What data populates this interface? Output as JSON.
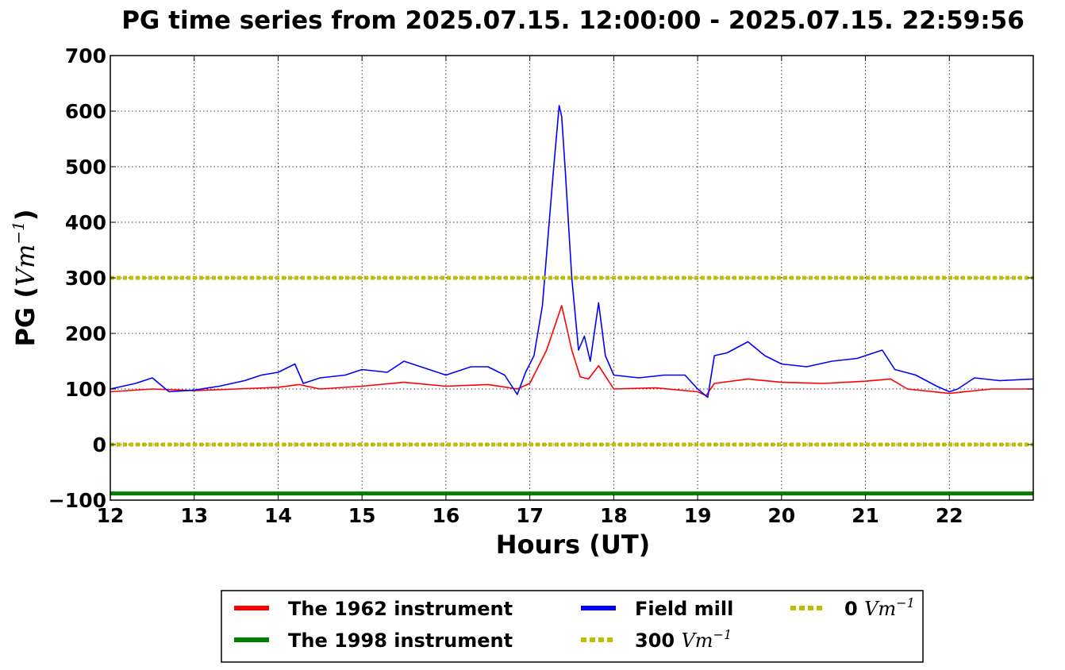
{
  "chart_data": {
    "type": "line",
    "title": "PG time series from 2025.07.15. 12:00:00 - 2025.07.15. 22:59:56",
    "xlabel": "Hours (UT)",
    "ylabel": {
      "prefix": "PG (",
      "unit_base": "Vm",
      "unit_exp": "−1",
      "suffix": ")"
    },
    "xlim": [
      12,
      23
    ],
    "ylim": [
      -100,
      700
    ],
    "xticks": [
      12,
      13,
      14,
      15,
      16,
      17,
      18,
      19,
      20,
      21,
      22
    ],
    "xtick_labels": [
      "12",
      "13",
      "14",
      "15",
      "16",
      "17",
      "18",
      "19",
      "20",
      "21",
      "22"
    ],
    "yticks": [
      -100,
      0,
      100,
      200,
      300,
      400,
      500,
      600,
      700
    ],
    "ytick_labels": [
      "−100",
      "0",
      "100",
      "200",
      "300",
      "400",
      "500",
      "600",
      "700"
    ],
    "grid": true,
    "legend_position": "bottom-center",
    "series": [
      {
        "name": "The 1962 instrument",
        "color": "#ff0000",
        "style": "solid",
        "x": [
          12.0,
          12.5,
          13.0,
          13.5,
          14.0,
          14.25,
          14.5,
          15.0,
          15.5,
          16.0,
          16.5,
          16.85,
          17.0,
          17.2,
          17.38,
          17.5,
          17.6,
          17.7,
          17.82,
          18.0,
          18.5,
          19.0,
          19.1,
          19.2,
          19.6,
          20.0,
          20.5,
          21.0,
          21.3,
          21.5,
          22.0,
          22.5,
          23.0
        ],
        "y": [
          95,
          100,
          97,
          100,
          103,
          108,
          100,
          105,
          112,
          105,
          108,
          100,
          110,
          170,
          250,
          170,
          122,
          118,
          142,
          100,
          102,
          95,
          88,
          110,
          118,
          112,
          110,
          114,
          118,
          100,
          92,
          100,
          100
        ]
      },
      {
        "name": "The 1998 instrument",
        "color": "#008000",
        "style": "solid",
        "x": [
          12.0,
          23.0
        ],
        "y": [
          -88,
          -88
        ]
      },
      {
        "name": "Field mill",
        "color": "#0000ff",
        "style": "solid",
        "x": [
          12.0,
          12.3,
          12.5,
          12.7,
          13.0,
          13.3,
          13.6,
          13.8,
          14.0,
          14.2,
          14.3,
          14.5,
          14.8,
          15.0,
          15.3,
          15.5,
          15.7,
          16.0,
          16.3,
          16.5,
          16.7,
          16.85,
          16.95,
          17.05,
          17.15,
          17.22,
          17.28,
          17.35,
          17.38,
          17.42,
          17.5,
          17.58,
          17.65,
          17.72,
          17.82,
          17.9,
          18.0,
          18.3,
          18.6,
          18.85,
          19.0,
          19.12,
          19.2,
          19.35,
          19.6,
          19.8,
          20.0,
          20.3,
          20.6,
          20.9,
          21.2,
          21.35,
          21.6,
          21.85,
          22.0,
          22.1,
          22.3,
          22.6,
          23.0
        ],
        "y": [
          100,
          110,
          120,
          95,
          98,
          105,
          115,
          125,
          130,
          145,
          110,
          120,
          125,
          135,
          130,
          150,
          140,
          125,
          140,
          140,
          125,
          90,
          130,
          160,
          250,
          380,
          490,
          610,
          590,
          500,
          300,
          170,
          195,
          150,
          255,
          160,
          125,
          120,
          125,
          125,
          100,
          85,
          160,
          165,
          185,
          160,
          145,
          140,
          150,
          155,
          170,
          135,
          125,
          105,
          95,
          100,
          120,
          115,
          118
        ]
      },
      {
        "name": "300 Vm⁻¹",
        "color": "#bfbf00",
        "style": "dotted",
        "x": [
          12.0,
          23.0
        ],
        "y": [
          300,
          300
        ]
      },
      {
        "name": "0 Vm⁻¹",
        "color": "#bfbf00",
        "style": "dotted",
        "x": [
          12.0,
          23.0
        ],
        "y": [
          0,
          0
        ]
      }
    ],
    "legend": [
      {
        "label": "The 1962 instrument",
        "color": "#ff0000",
        "style": "solid"
      },
      {
        "label": "The 1998 instrument",
        "color": "#008000",
        "style": "solid"
      },
      {
        "label": "Field mill",
        "color": "#0000ff",
        "style": "solid"
      },
      {
        "label_prefix": "300",
        "unit_base": "Vm",
        "unit_exp": "−1",
        "color": "#bfbf00",
        "style": "dotted"
      },
      {
        "label_prefix": "0",
        "unit_base": "Vm",
        "unit_exp": "−1",
        "color": "#bfbf00",
        "style": "dotted"
      }
    ]
  }
}
